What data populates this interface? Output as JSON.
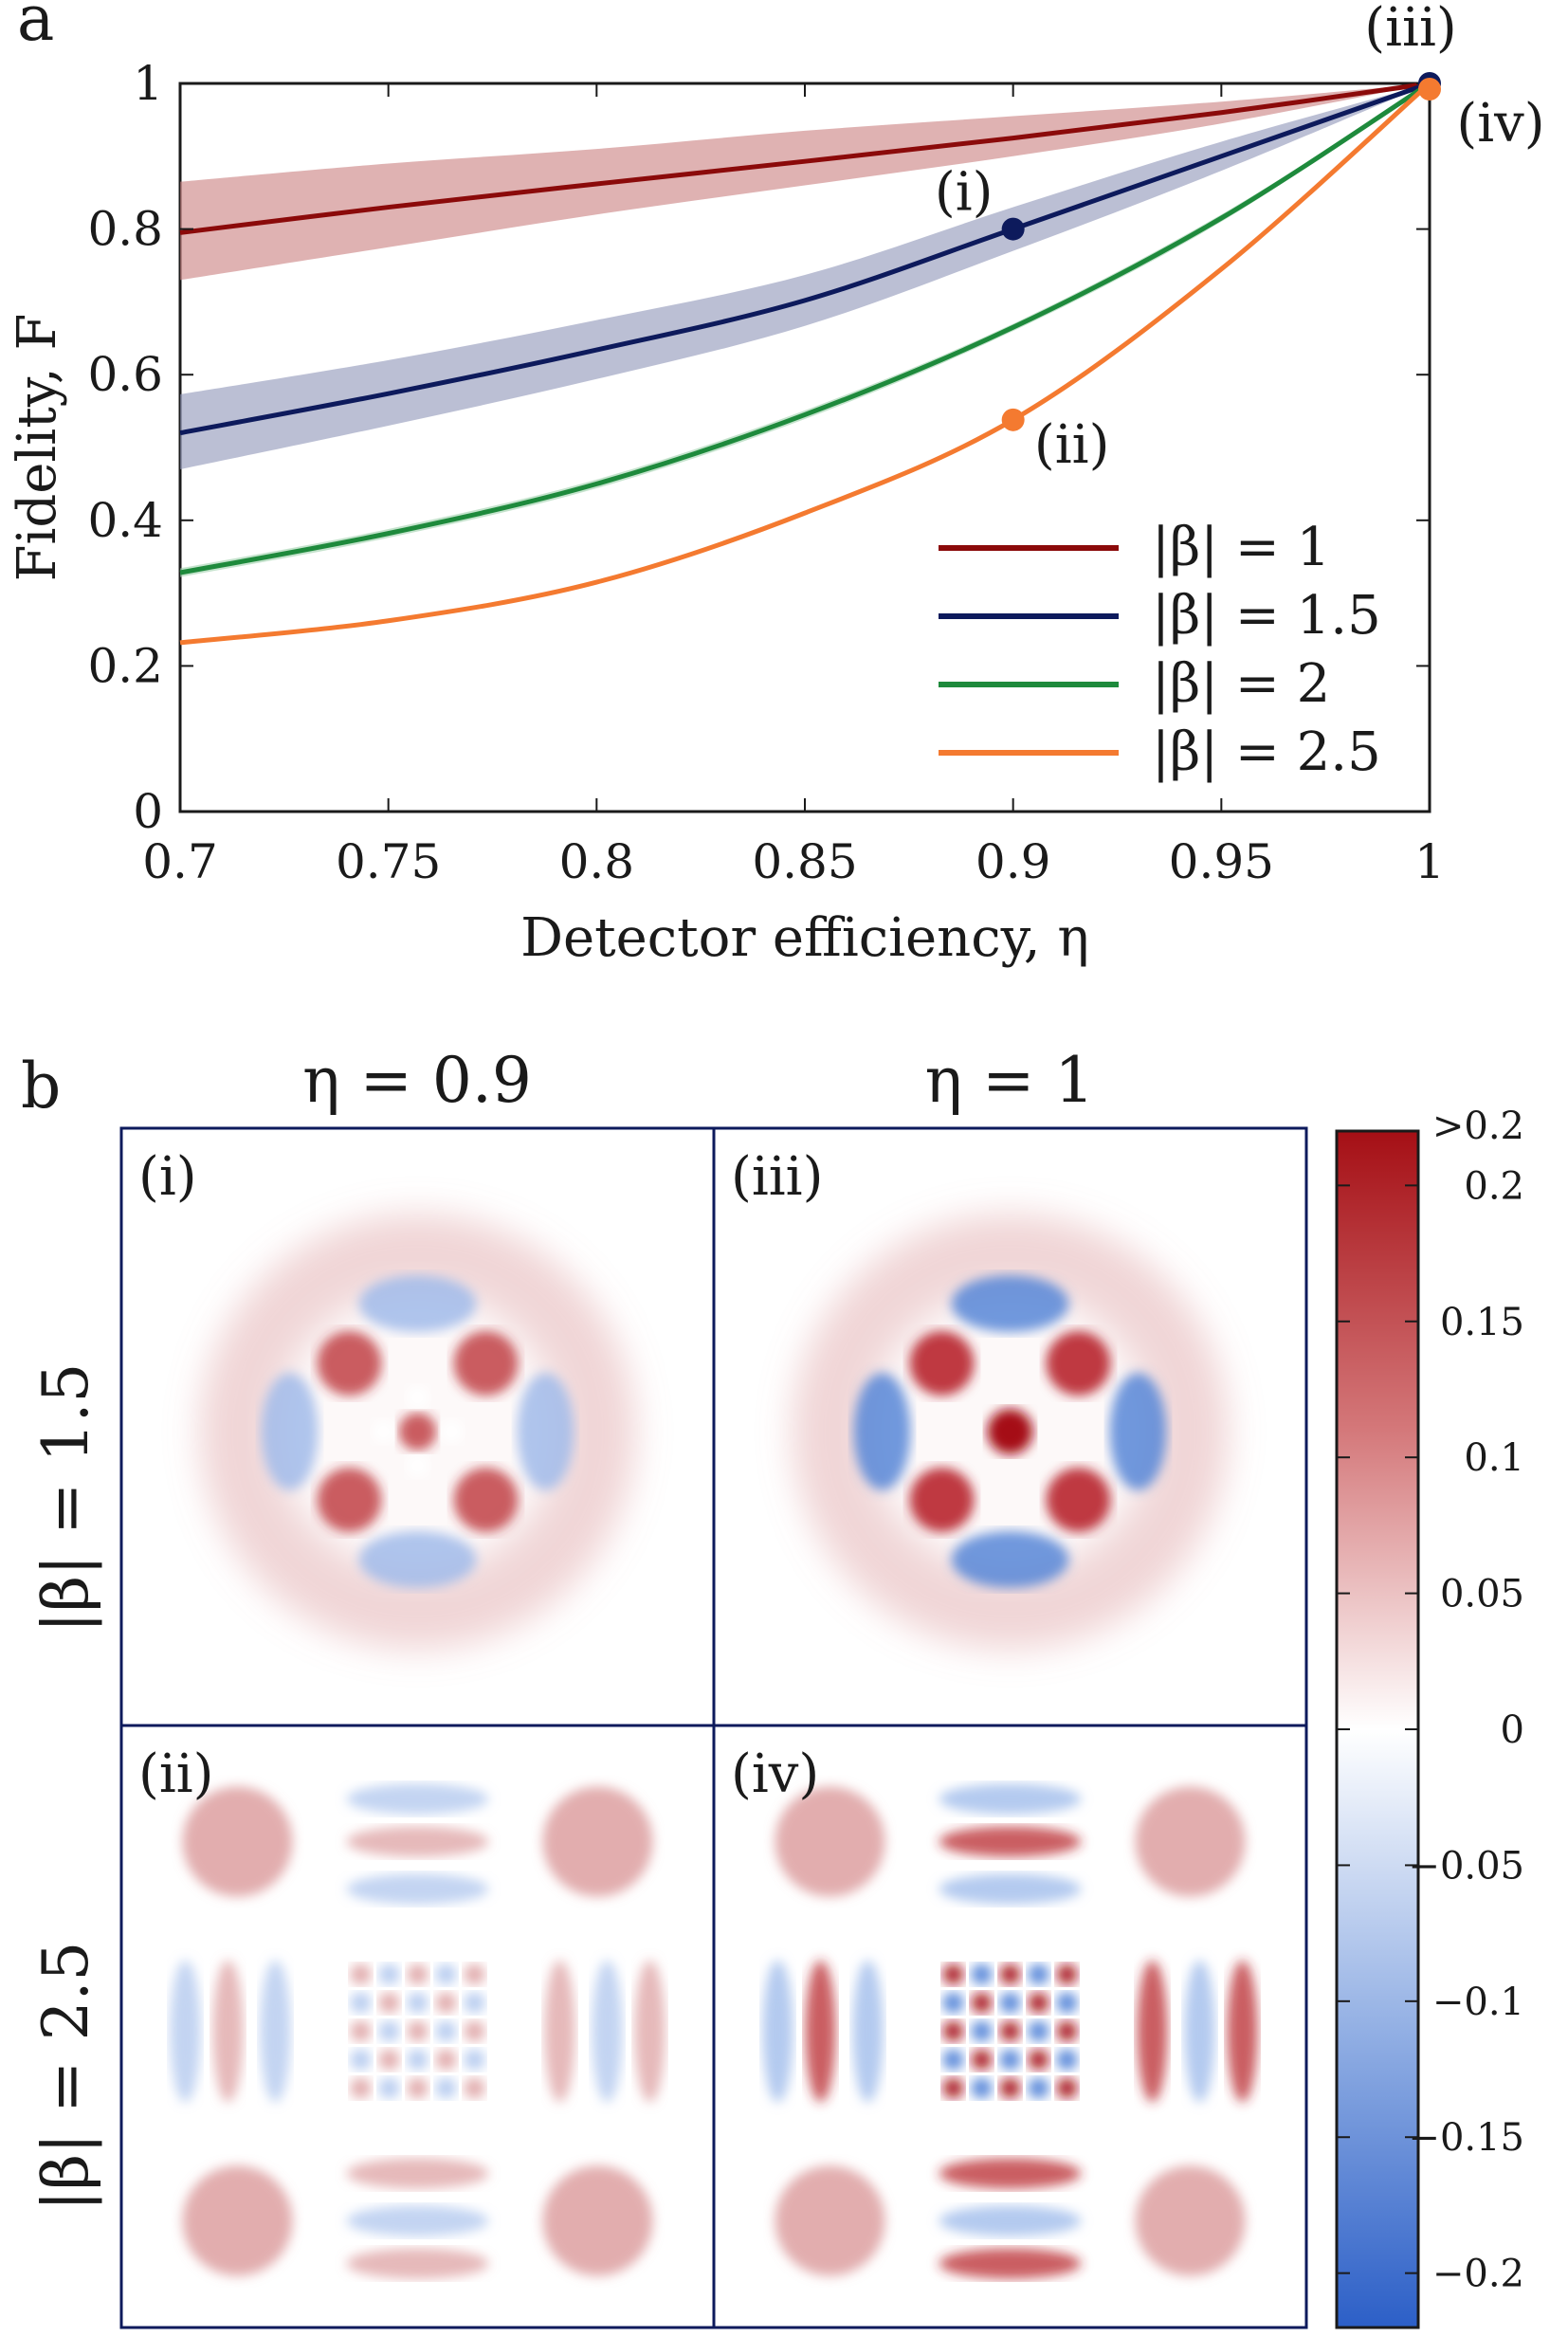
{
  "panel_a_label": "a",
  "panel_b_label": "b",
  "chart_data": [
    {
      "type": "line",
      "panel": "a",
      "xlabel": "Detector efficiency, η",
      "ylabel": "Fidelity, F",
      "xlim": [
        0.7,
        1
      ],
      "ylim": [
        0,
        1
      ],
      "xticks": [
        "0.7",
        "0.75",
        "0.8",
        "0.85",
        "0.9",
        "0.95",
        "1"
      ],
      "yticks": [
        "0",
        "0.2",
        "0.4",
        "0.6",
        "0.8",
        "1"
      ],
      "legend_position": "bottom-right",
      "series": [
        {
          "name": "|β| = 1",
          "color": "#8b0a0a",
          "band_color": "#c97f7f",
          "x": [
            0.7,
            0.75,
            0.8,
            0.85,
            0.9,
            0.95,
            1.0
          ],
          "y": [
            0.795,
            0.83,
            0.862,
            0.893,
            0.925,
            0.96,
            1.0
          ],
          "band_lower": [
            0.73,
            0.775,
            0.82,
            0.86,
            0.9,
            0.945,
            1.0
          ],
          "band_upper": [
            0.865,
            0.89,
            0.91,
            0.935,
            0.955,
            0.975,
            1.0
          ]
        },
        {
          "name": "|β| = 1.5",
          "color": "#0d1a5c",
          "band_color": "#8e94b8",
          "x": [
            0.7,
            0.75,
            0.8,
            0.85,
            0.9,
            0.95,
            1.0
          ],
          "y": [
            0.52,
            0.574,
            0.634,
            0.702,
            0.8,
            0.9,
            1.0
          ],
          "band_lower": [
            0.47,
            0.53,
            0.594,
            0.667,
            0.77,
            0.88,
            1.0
          ],
          "band_upper": [
            0.573,
            0.62,
            0.675,
            0.737,
            0.83,
            0.92,
            1.0
          ]
        },
        {
          "name": "|β| = 2",
          "color": "#1e8a3c",
          "band_color": "#9fd0ac",
          "x": [
            0.7,
            0.75,
            0.8,
            0.85,
            0.9,
            0.95,
            1.0
          ],
          "y": [
            0.328,
            0.382,
            0.45,
            0.545,
            0.665,
            0.815,
            1.0
          ],
          "band_lower": [
            0.322,
            0.376,
            0.444,
            0.539,
            0.66,
            0.81,
            1.0
          ],
          "band_upper": [
            0.334,
            0.388,
            0.456,
            0.551,
            0.67,
            0.82,
            1.0
          ]
        },
        {
          "name": "|β| = 2.5",
          "color": "#f47a30",
          "band_color": "#f8bf98",
          "x": [
            0.7,
            0.75,
            0.8,
            0.85,
            0.9,
            0.95,
            1.0
          ],
          "y": [
            0.232,
            0.262,
            0.315,
            0.41,
            0.538,
            0.745,
            1.0
          ],
          "band_lower": [
            0.232,
            0.262,
            0.315,
            0.41,
            0.538,
            0.745,
            1.0
          ],
          "band_upper": [
            0.232,
            0.262,
            0.315,
            0.41,
            0.538,
            0.745,
            1.0
          ]
        }
      ],
      "markers": [
        {
          "label": "(i)",
          "x": 0.9,
          "y": 0.8,
          "color": "#0d1a5c"
        },
        {
          "label": "(ii)",
          "x": 0.9,
          "y": 0.538,
          "color": "#f47a30"
        },
        {
          "label": "(iii)",
          "x": 1.0,
          "y": 1.0,
          "color": "#0d1a5c"
        },
        {
          "label": "(iv)",
          "x": 1.0,
          "y": 1.0,
          "color": "#f47a30"
        }
      ]
    },
    {
      "type": "heatmap",
      "panel": "b",
      "column_titles": [
        "η = 0.9",
        "η = 1"
      ],
      "row_titles": [
        "|β| = 1.5",
        "|β| = 2.5"
      ],
      "tiles": [
        {
          "label": "(i)",
          "beta": 1.5,
          "eta": 0.9,
          "center_value": 0.1
        },
        {
          "label": "(iii)",
          "beta": 1.5,
          "eta": 1.0,
          "center_value": 0.2
        },
        {
          "label": "(ii)",
          "beta": 2.5,
          "eta": 0.9,
          "center_value": 0.08
        },
        {
          "label": "(iv)",
          "beta": 2.5,
          "eta": 1.0,
          "center_value": 0.2
        }
      ],
      "colorbar": {
        "range": [
          -0.22,
          0.22
        ],
        "ticks": [
          ">0.2",
          "0.2",
          "0.15",
          "0.1",
          "0.05",
          "0",
          "−0.05",
          "−0.1",
          "−0.15",
          "−0.2"
        ],
        "tick_values": [
          0.22,
          0.2,
          0.15,
          0.1,
          0.05,
          0,
          -0.05,
          -0.1,
          -0.15,
          -0.2
        ],
        "colors": {
          "positive": "#a50f15",
          "zero": "#ffffff",
          "negative": "#2c5fc7"
        }
      }
    }
  ]
}
